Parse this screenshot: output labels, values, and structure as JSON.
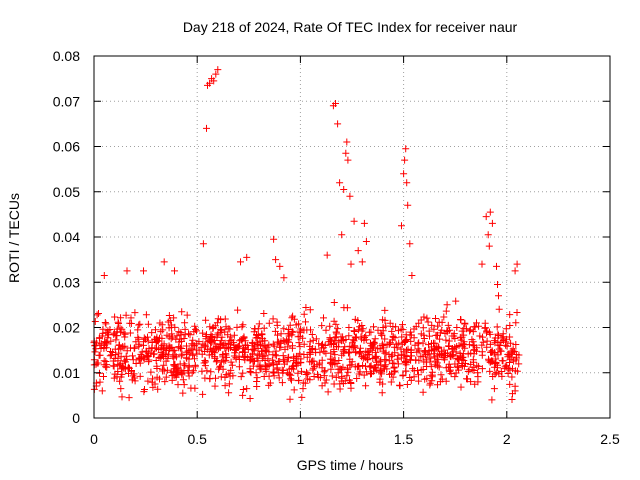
{
  "chart_data": {
    "type": "scatter",
    "title": "Day 218 of 2024, Rate Of TEC Index for receiver naur",
    "xlabel": "GPS time / hours",
    "ylabel": "ROTI / TECUs",
    "xlim": [
      0,
      2.5
    ],
    "ylim": [
      0,
      0.08
    ],
    "x_ticks": [
      "0",
      "0.5",
      "1",
      "1.5",
      "2",
      "2.5"
    ],
    "y_ticks": [
      "0",
      "0.01",
      "0.02",
      "0.03",
      "0.04",
      "0.05",
      "0.06",
      "0.07",
      "0.08"
    ],
    "grid": true,
    "marker": "plus",
    "color": "#ff0000",
    "points": [
      [
        0.55,
        0.0735
      ],
      [
        0.56,
        0.074
      ],
      [
        0.57,
        0.075
      ],
      [
        0.58,
        0.0745
      ],
      [
        0.59,
        0.076
      ],
      [
        0.6,
        0.077
      ],
      [
        0.545,
        0.064
      ],
      [
        1.16,
        0.069
      ],
      [
        1.17,
        0.0695
      ],
      [
        1.18,
        0.065
      ],
      [
        1.19,
        0.052
      ],
      [
        1.21,
        0.0505
      ],
      [
        1.22,
        0.0585
      ],
      [
        1.225,
        0.061
      ],
      [
        1.23,
        0.057
      ],
      [
        1.24,
        0.049
      ],
      [
        1.26,
        0.0435
      ],
      [
        1.28,
        0.037
      ],
      [
        1.3,
        0.0345
      ],
      [
        1.49,
        0.0425
      ],
      [
        1.5,
        0.054
      ],
      [
        1.505,
        0.057
      ],
      [
        1.51,
        0.0595
      ],
      [
        1.515,
        0.052
      ],
      [
        1.52,
        0.047
      ],
      [
        1.53,
        0.0385
      ],
      [
        1.54,
        0.0315
      ],
      [
        1.9,
        0.0445
      ],
      [
        1.92,
        0.0455
      ],
      [
        1.93,
        0.043
      ],
      [
        1.91,
        0.0405
      ],
      [
        1.915,
        0.038
      ],
      [
        1.88,
        0.034
      ],
      [
        1.95,
        0.0335
      ],
      [
        1.955,
        0.0295
      ],
      [
        1.96,
        0.027
      ],
      [
        0.53,
        0.0385
      ],
      [
        0.87,
        0.0395
      ],
      [
        0.88,
        0.035
      ],
      [
        0.9,
        0.0335
      ],
      [
        0.92,
        0.031
      ],
      [
        1.13,
        0.036
      ],
      [
        1.2,
        0.0405
      ],
      [
        1.245,
        0.034
      ],
      [
        1.31,
        0.043
      ],
      [
        1.32,
        0.039
      ],
      [
        0.05,
        0.0315
      ],
      [
        0.16,
        0.0325
      ],
      [
        0.24,
        0.0325
      ],
      [
        0.34,
        0.0345
      ],
      [
        0.39,
        0.0325
      ],
      [
        0.71,
        0.0345
      ],
      [
        0.74,
        0.0355
      ],
      [
        2.04,
        0.0325
      ],
      [
        2.05,
        0.034
      ],
      [
        0.04,
        0.006
      ],
      [
        0.13,
        0.0065
      ],
      [
        0.17,
        0.0045
      ],
      [
        0.43,
        0.0055
      ],
      [
        0.72,
        0.005
      ],
      [
        0.74,
        0.0065
      ],
      [
        1.94,
        0.0065
      ],
      [
        2.04,
        0.006
      ]
    ],
    "noise_band": {
      "x_range": [
        0.0,
        2.06
      ],
      "y_center": 0.0145,
      "y_spread": 0.012,
      "count": 1400
    }
  }
}
